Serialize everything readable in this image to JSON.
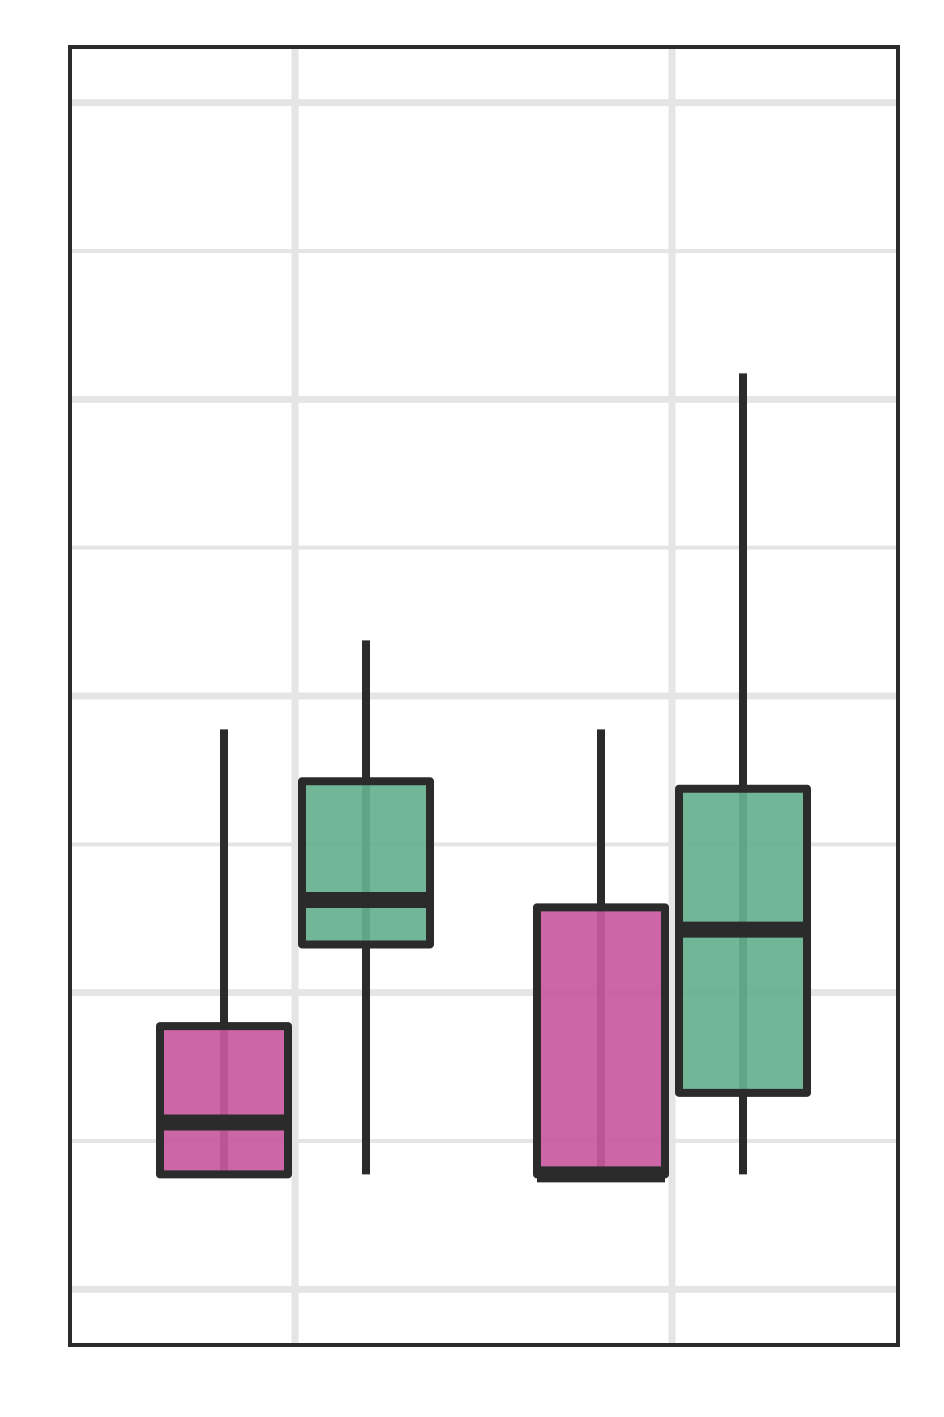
{
  "chart_data": {
    "type": "box",
    "title": "",
    "xlabel": "",
    "ylabel": "",
    "grid": true,
    "legend": "none",
    "ylim": [
      0,
      8.75
    ],
    "categories": [
      "",
      ""
    ],
    "series": [
      {
        "color": "#c9599f",
        "boxes": [
          {
            "category": 0,
            "whisker_low": 1.15,
            "q1": 1.15,
            "median": 1.5,
            "q3": 2.15,
            "whisker_high": 4.15
          },
          {
            "category": 1,
            "whisker_low": 1.15,
            "q1": 1.15,
            "median": 1.15,
            "q3": 2.95,
            "whisker_high": 4.15
          }
        ]
      },
      {
        "color": "#66b08f",
        "boxes": [
          {
            "category": 0,
            "whisker_low": 1.15,
            "q1": 2.7,
            "median": 3.0,
            "q3": 3.8,
            "whisker_high": 4.75
          },
          {
            "category": 1,
            "whisker_low": 1.15,
            "q1": 1.7,
            "median": 2.8,
            "q3": 3.75,
            "whisker_high": 6.55
          }
        ]
      }
    ],
    "colors": {
      "frame": "#2b2b2b",
      "grid": "#e5e5e5",
      "background": "#ffffff"
    }
  }
}
